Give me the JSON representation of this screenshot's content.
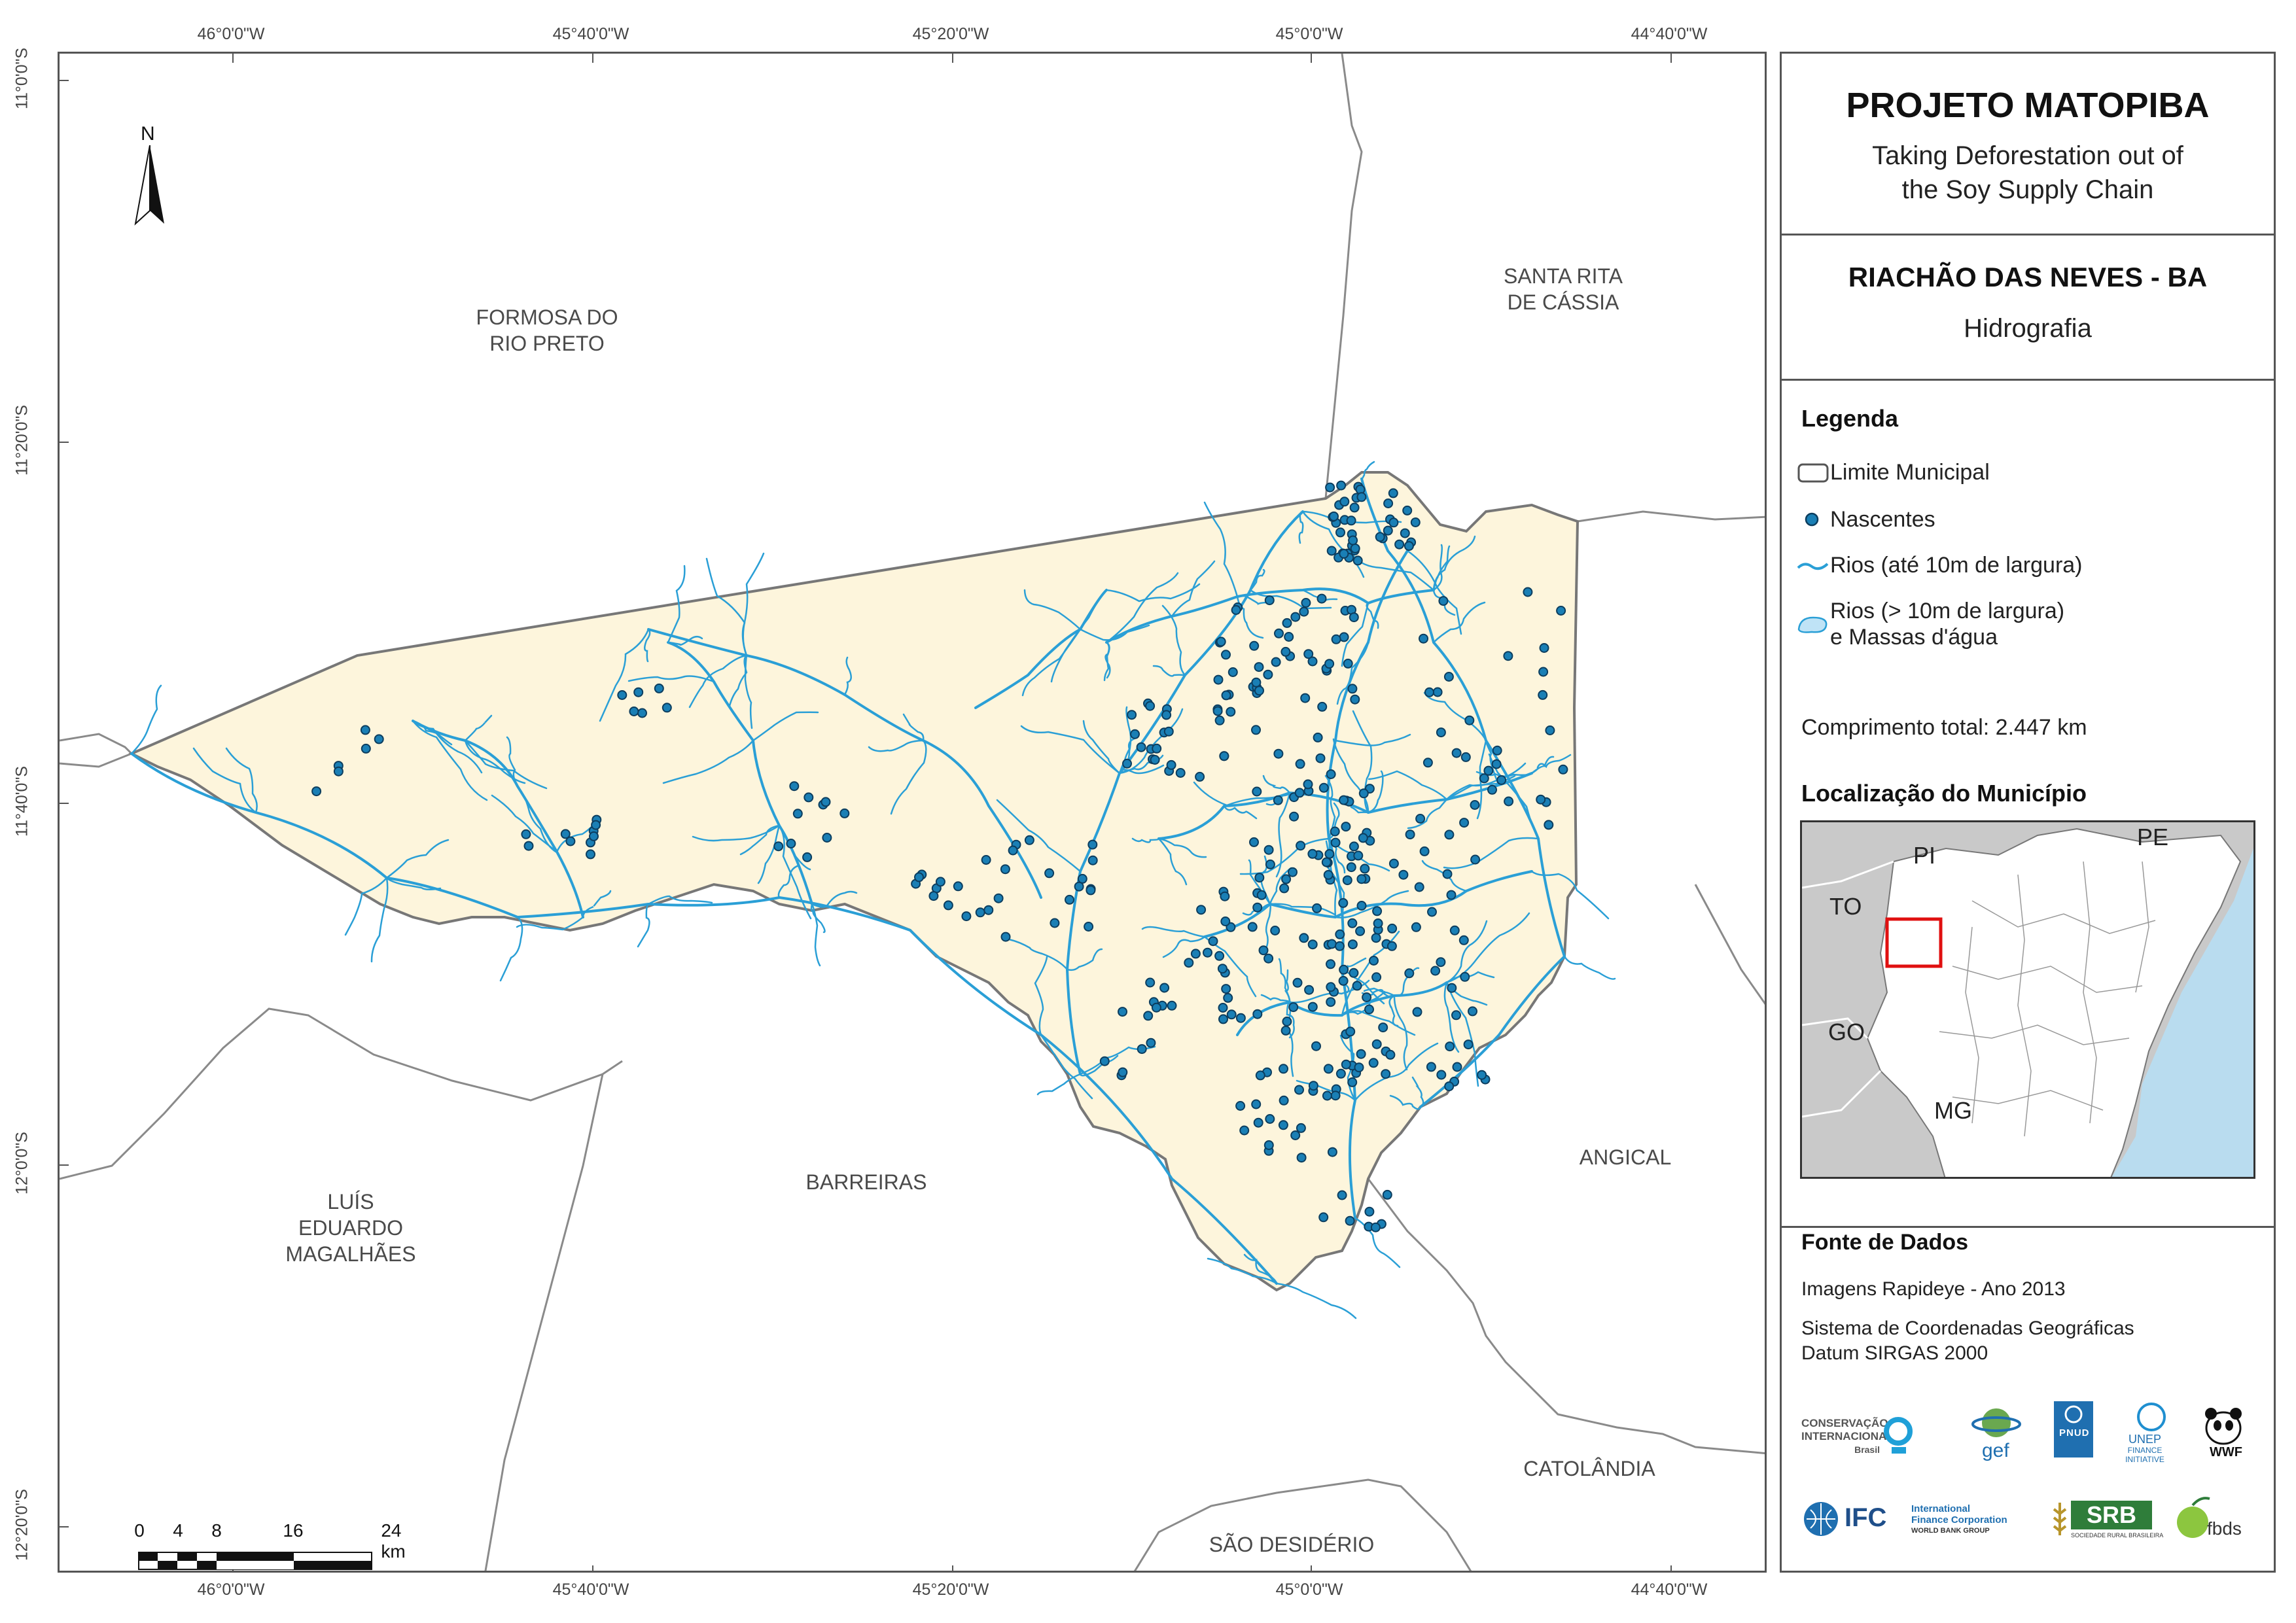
{
  "map": {
    "north_label": "N",
    "coords_top": [
      "46°0'0\"W",
      "45°40'0\"W",
      "45°20'0\"W",
      "45°0'0\"W",
      "44°40'0\"W"
    ],
    "coords_bottom": [
      "46°0'0\"W",
      "45°40'0\"W",
      "45°20'0\"W",
      "45°0'0\"W",
      "44°40'0\"W"
    ],
    "coords_left": [
      "11°0'0\"S",
      "11°20'0\"S",
      "11°40'0\"S",
      "12°0'0\"S",
      "12°20'0\"S"
    ],
    "municipalities": {
      "formosa": "FORMOSA DO\nRIO PRETO",
      "santa_rita": "SANTA RITA\nDE CÁSSIA",
      "luis_eduardo": "LUÍS\nEDUARDO\nMAGALHÃES",
      "barreiras": "BARREIRAS",
      "angical": "ANGICAL",
      "catolandia": "CATOLÂNDIA",
      "sao_desiderio": "SÃO DESIDÉRIO"
    },
    "scale": {
      "labels": [
        "0",
        "4",
        "8",
        "16",
        "24 km"
      ]
    },
    "colors": {
      "municipality_fill": "#fdf5dc",
      "river": "#2a9fd6",
      "spring": "#1a7fb5",
      "spring_outline": "#0c3d5e",
      "boundary": "#777777"
    }
  },
  "panel": {
    "project_title": "PROJETO MATOPIBA",
    "project_subtitle_1": "Taking Deforestation out of",
    "project_subtitle_2": "the Soy Supply Chain",
    "municipality_title": "RIACHÃO DAS NEVES - BA",
    "theme": "Hidrografia",
    "legend_title": "Legenda",
    "legend": {
      "limit": "Limite Municipal",
      "springs": "Nascentes",
      "rivers_small": "Rios (até 10m de largura)",
      "rivers_large_1": "Rios (> 10m de largura)",
      "rivers_large_2": "e Massas d'água"
    },
    "total_length": "Comprimento total: 2.447 km",
    "location_title": "Localização do Município",
    "inset_labels": {
      "pi": "PI",
      "pe": "PE",
      "to": "TO",
      "go": "GO",
      "mg": "MG"
    },
    "data_source_title": "Fonte de Dados",
    "data_source_1": "Imagens Rapideye - Ano 2013",
    "data_source_2": "Sistema de Coordenadas Geográficas",
    "data_source_3": "Datum SIRGAS 2000",
    "logos": {
      "ci_1": "CONSERVAÇÃO",
      "ci_2": "INTERNACIONAL",
      "ci_3": "Brasil",
      "gef": "gef",
      "pnud": "PNUD",
      "unep_1": "UNEP",
      "unep_2": "FINANCE",
      "unep_3": "INITIATIVE",
      "wwf": "WWF",
      "ifc": "IFC",
      "ifc_1": "International",
      "ifc_2": "Finance Corporation",
      "ifc_3": "WORLD BANK GROUP",
      "srb": "SRB",
      "srb_sub": "SOCIEDADE RURAL BRASILEIRA",
      "fbds": "fbds"
    }
  }
}
